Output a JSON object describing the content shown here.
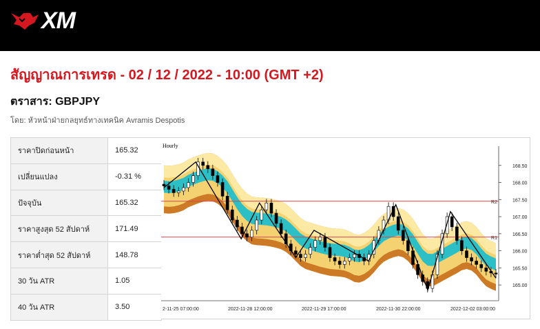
{
  "header": {
    "logo_text": "XM",
    "brand_color": "#d51820"
  },
  "headline": "สัญญาณการเทรด - 02 / 12 / 2022 - 10:00 (GMT +2)",
  "instrument_line": "ตราสาร: GBPJPY",
  "author_line": "โดย: หัวหน้าฝ่ายกลยุทธ์ทางเทคนิค Avramis Despotis",
  "stats": [
    {
      "label": "ราคาปิดก่อนหน้า",
      "value": "165.32"
    },
    {
      "label": "เปลี่ยนแปลง",
      "value": "-0.31 %"
    },
    {
      "label": "ปัจจุบัน",
      "value": "165.32"
    },
    {
      "label": "ราคาสูงสุด 52 สัปดาห์",
      "value": "171.49"
    },
    {
      "label": "ราคาต่ำสุด 52 สัปดาห์",
      "value": "148.78"
    },
    {
      "label": "30 วัน ATR",
      "value": "1.05"
    },
    {
      "label": "40 วัน ATR",
      "value": "3.50"
    }
  ],
  "chart_data": {
    "type": "candlestick",
    "timeframe_label": "Hourly",
    "x_tick_labels": [
      "2-11-25 07:00:00",
      "2022-11-28 12:00:00",
      "2022-11-29 17:00:00",
      "2022-11-30 22:00:00",
      "2022-12-02 03:00:00"
    ],
    "y_ticks": [
      165.0,
      165.5,
      166.0,
      166.5,
      167.0,
      167.5,
      168.0,
      168.5
    ],
    "ylim": [
      164.7,
      168.9
    ],
    "levels": [
      {
        "label": "R2",
        "value": 167.45
      },
      {
        "label": "R1",
        "value": 166.4
      }
    ],
    "close_series": [
      167.9,
      167.8,
      167.7,
      167.75,
      167.85,
      168.0,
      168.2,
      168.6,
      168.5,
      168.4,
      168.2,
      168.0,
      167.6,
      167.2,
      166.9,
      166.7,
      166.5,
      166.4,
      166.6,
      166.9,
      167.2,
      167.4,
      167.1,
      166.8,
      166.5,
      166.2,
      166.0,
      165.9,
      165.8,
      165.9,
      166.1,
      166.3,
      166.4,
      166.1,
      165.8,
      165.7,
      165.6,
      165.7,
      165.8,
      165.9,
      165.8,
      165.7,
      165.9,
      166.3,
      166.6,
      166.9,
      167.3,
      167.0,
      166.6,
      166.3,
      166.0,
      165.6,
      165.3,
      165.1,
      164.9,
      165.3,
      165.9,
      166.5,
      167.0,
      166.7,
      166.3,
      166.0,
      165.8,
      165.7,
      165.6,
      165.5,
      165.4,
      165.35,
      165.32
    ],
    "zigzag": [
      [
        0,
        167.85
      ],
      [
        7,
        168.6
      ],
      [
        17,
        166.35
      ],
      [
        21,
        167.4
      ],
      [
        29,
        165.8
      ],
      [
        33,
        166.6
      ],
      [
        45,
        165.7
      ],
      [
        51,
        167.35
      ],
      [
        58,
        164.85
      ],
      [
        63,
        167.15
      ],
      [
        73,
        165.2
      ]
    ],
    "colors": {
      "band_outer": "#cc7a25",
      "band_mid": "#f5d271",
      "band_inner": "#fbe9a4",
      "band_teal": "#2dbfc6",
      "level_line": "#d9444c",
      "candle_up": "#ffffff",
      "candle_down": "#000000",
      "zigzag": "#000000"
    }
  }
}
